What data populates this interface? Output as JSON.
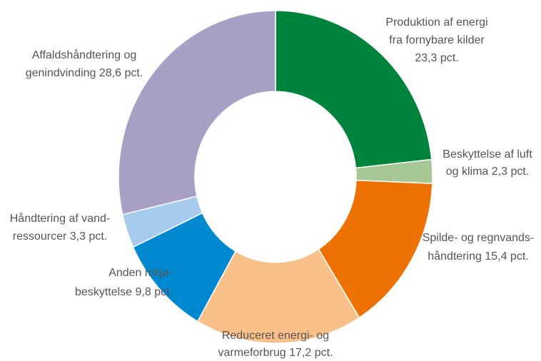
{
  "chart_data": {
    "type": "donut",
    "categories": [
      [
        "Produktion af energi",
        "fra fornybare kilder"
      ],
      [
        "Beskyttelse af luft",
        "og klima"
      ],
      [
        "Spilde- og regnvands-",
        "håndtering"
      ],
      [
        "Reduceret energi- og",
        "varmeforbrug"
      ],
      [
        "Anden miljø-",
        "beskyttelse"
      ],
      [
        "Håndtering af vand-",
        "ressourcer"
      ],
      [
        "Affaldshåndtering og",
        "genindvinding"
      ]
    ],
    "values": [
      23.3,
      2.3,
      15.4,
      17.2,
      9.8,
      3.3,
      28.6
    ],
    "value_labels": [
      "23,3 pct.",
      "2,3 pct.",
      "15,4 pct.",
      "17,2 pct.",
      "9,8 pct.",
      "3,3 pct.",
      "28,6 pct."
    ],
    "colors": [
      "#00843d",
      "#a5c895",
      "#ee7203",
      "#f9c08a",
      "#0089d1",
      "#a6cbee",
      "#a89fc4"
    ]
  }
}
